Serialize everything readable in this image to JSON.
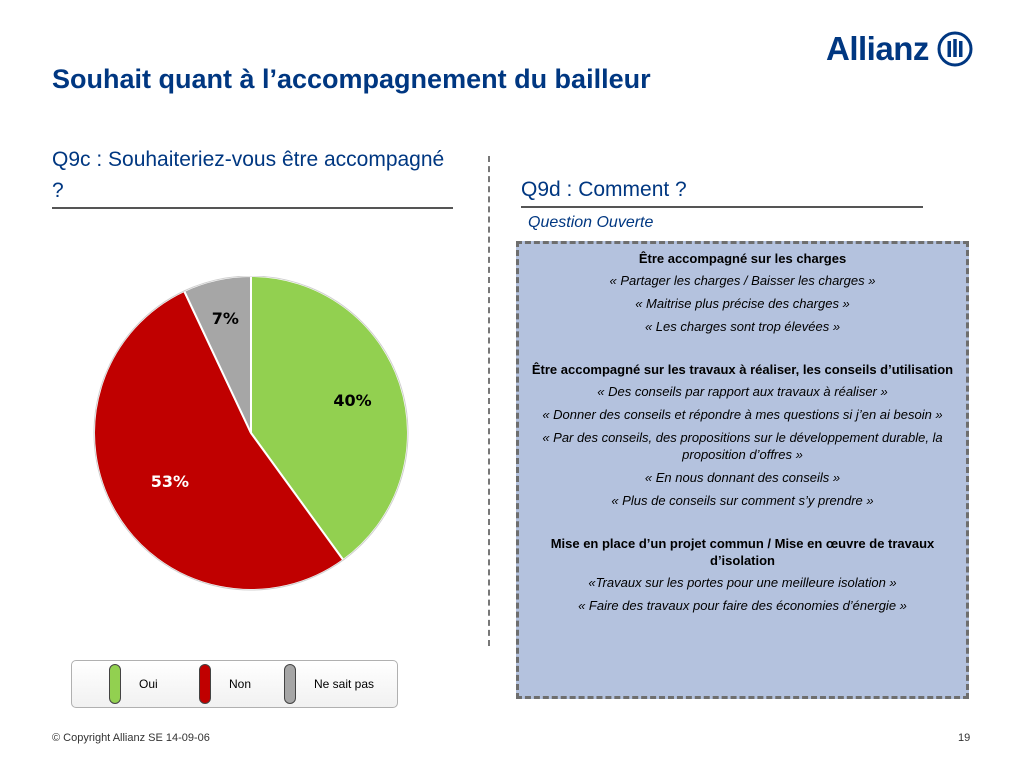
{
  "brand": {
    "name": "Allianz",
    "color": "#003781"
  },
  "title": "Souhait quant à l’accompagnement du bailleur",
  "left_question": "Q9c : Souhaiteriez-vous être accompagné ?",
  "right_question": "Q9d : Comment ?",
  "right_subtitle": "Question Ouverte",
  "chart_data": {
    "type": "pie",
    "slices": [
      {
        "name": "Oui",
        "value": 40,
        "label": "40%",
        "color": "#92d050"
      },
      {
        "name": "Non",
        "value": 53,
        "label": "53%",
        "color": "#c00000"
      },
      {
        "name": "Ne sait pas",
        "value": 7,
        "label": "7%",
        "color": "#a6a6a6"
      }
    ],
    "legend_position": "bottom",
    "start": "top, clockwise"
  },
  "legend": [
    {
      "label": "Oui",
      "color": "#92d050"
    },
    {
      "label": "Non",
      "color": "#c00000"
    },
    {
      "label": "Ne sait pas",
      "color": "#a6a6a6"
    }
  ],
  "answers": {
    "section1": {
      "heading": "Être accompagné sur les charges",
      "quotes": [
        "« Partager les charges / Baisser les charges »",
        "« Maitrise plus précise des charges »",
        "« Les charges sont trop élevées »"
      ]
    },
    "section2": {
      "heading": "Être accompagné sur les travaux à réaliser, les conseils d’utilisation",
      "quotes": [
        "« Des conseils par rapport aux travaux à réaliser »",
        "« Donner des conseils et répondre à mes questions si j’en ai besoin »",
        "« Par des conseils, des propositions sur le développement durable, la proposition d’offres »",
        "« En nous donnant des conseils »",
        "« Plus de conseils sur comment s’y prendre »"
      ]
    },
    "section3": {
      "heading": "Mise en place d’un projet commun / Mise en œuvre de travaux d’isolation",
      "quotes": [
        "«Travaux sur les portes pour une meilleure isolation »",
        "« Faire des travaux pour faire des économies d’énergie »"
      ]
    }
  },
  "footer": {
    "copyright": "© Copyright Allianz SE 14-09-06",
    "page": "19"
  }
}
